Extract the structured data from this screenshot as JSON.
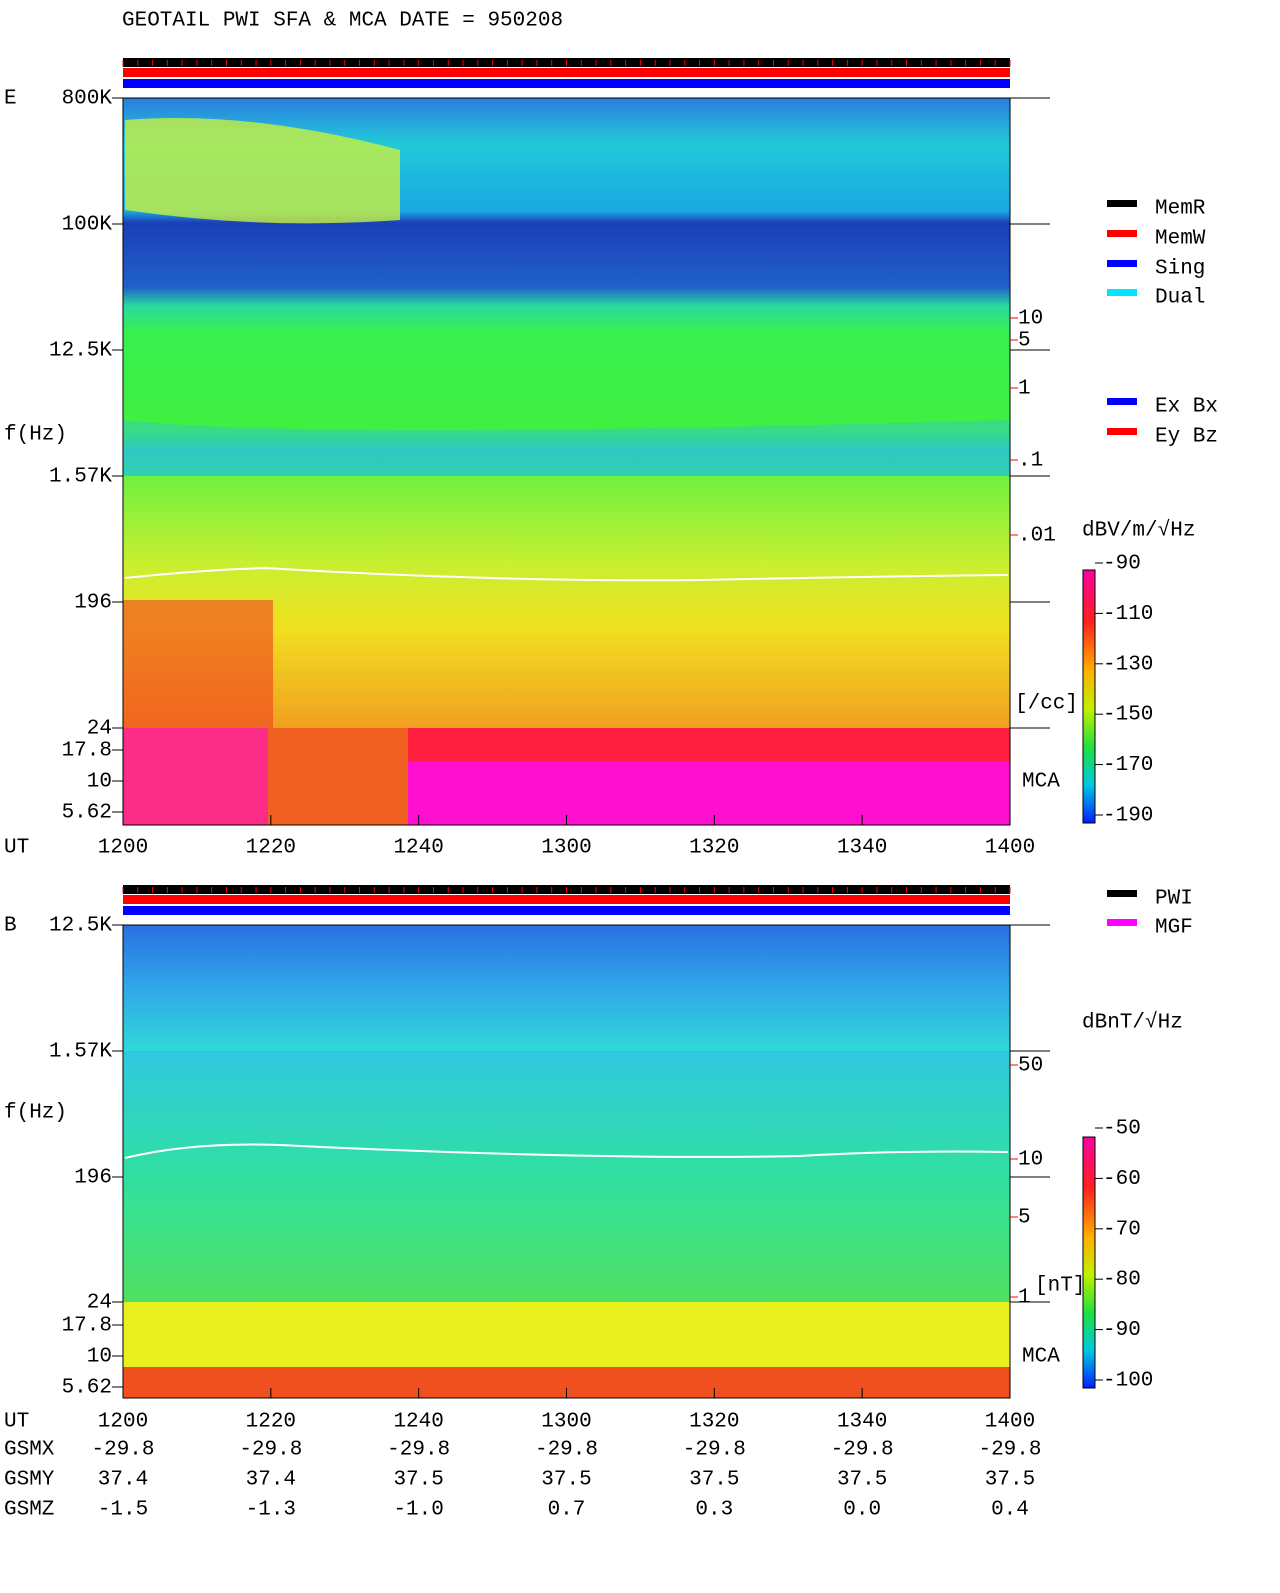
{
  "title": "GEOTAIL  PWI SFA & MCA   DATE = 950208",
  "top": {
    "component": "E",
    "y_title": "f(Hz)",
    "y_labels": [
      "800K",
      "100K",
      "12.5K",
      "1.57K",
      "196",
      "24",
      "17.8",
      "10",
      "5.62"
    ],
    "x_title": "UT",
    "x_labels": [
      "1200",
      "1220",
      "1240",
      "1300",
      "1320",
      "1340",
      "1400"
    ],
    "mca": "MCA",
    "scale_labels": [
      "10",
      "5",
      "1",
      ".1",
      ".01"
    ],
    "scale_unit": "[/cc]",
    "colorbar_title": "dBV/m/√Hz",
    "colorbar_labels": [
      "-90",
      "-110",
      "-130",
      "-150",
      "-170",
      "-190"
    ],
    "legend": [
      {
        "label": "MemR",
        "color": "#000000"
      },
      {
        "label": "MemW",
        "color": "#ff0000"
      },
      {
        "label": "Sing",
        "color": "#0000ff"
      },
      {
        "label": "Dual",
        "color": "#00e5ff"
      },
      {
        "label": "Ex Bx",
        "color": "#0000ff"
      },
      {
        "label": "Ey Bz",
        "color": "#ff0000"
      }
    ]
  },
  "bottom": {
    "component": "B",
    "y_title": "f(Hz)",
    "y_labels": [
      "12.5K",
      "1.57K",
      "196",
      "24",
      "17.8",
      "10",
      "5.62"
    ],
    "x_title": "UT",
    "x_labels": [
      "1200",
      "1220",
      "1240",
      "1300",
      "1320",
      "1340",
      "1400"
    ],
    "mca": "MCA",
    "scale_labels": [
      "50",
      "10",
      "5",
      "1"
    ],
    "scale_unit": "[nT]",
    "colorbar_title": "dBnT/√Hz",
    "colorbar_labels": [
      "-50",
      "-60",
      "-70",
      "-80",
      "-90",
      "-100"
    ],
    "legend": [
      {
        "label": "PWI",
        "color": "#000000"
      },
      {
        "label": "MGF",
        "color": "#ff00ff"
      }
    ]
  },
  "orbit": [
    {
      "name": "GSMX",
      "values": [
        "-29.8",
        "-29.8",
        "-29.8",
        "-29.8",
        "-29.8",
        "-29.8",
        "-29.8"
      ]
    },
    {
      "name": "GSMY",
      "values": [
        "37.4",
        "37.4",
        "37.5",
        "37.5",
        "37.5",
        "37.5",
        "37.5"
      ]
    },
    {
      "name": "GSMZ",
      "values": [
        "-1.5",
        "-1.3",
        "-1.0",
        "0.7",
        "0.3",
        "0.0",
        "0.4"
      ]
    }
  ]
}
